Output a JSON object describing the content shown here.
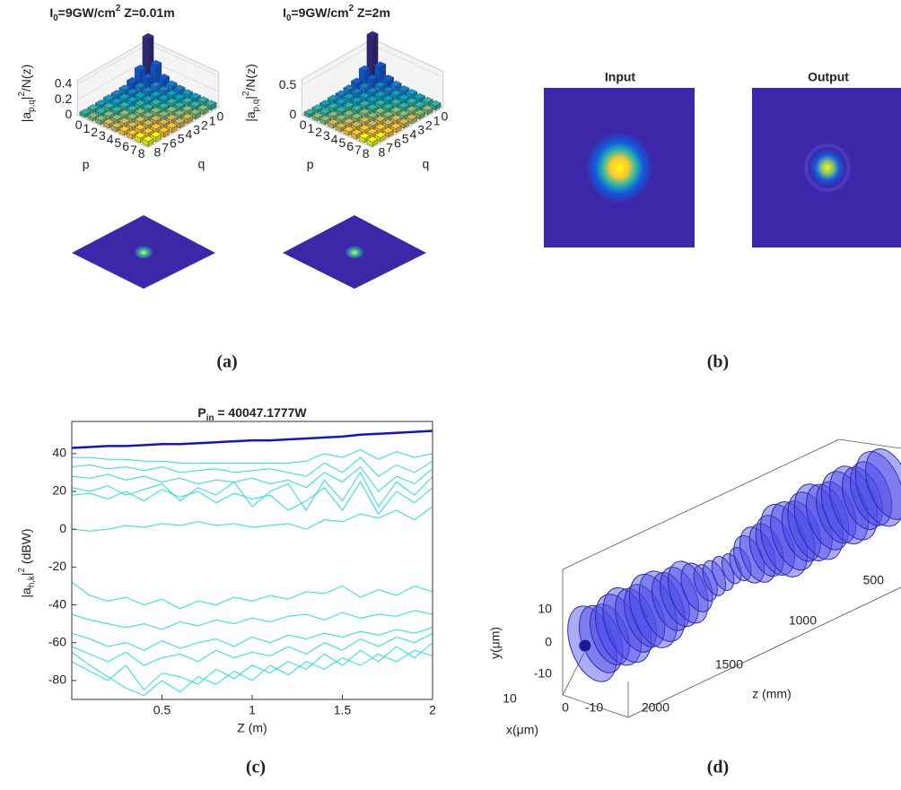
{
  "panel_labels": [
    "(a)",
    "(b)",
    "(c)",
    "(d)"
  ],
  "chart_data": [
    {
      "type": "bar3d",
      "title_prefix": "I",
      "title_sub": "0",
      "title_mid": "=9GW/cm",
      "title_sup": "2",
      "title_suffix": " Z=0.01m",
      "zlabel_prefix": "|a",
      "zlabel_sub": "p,q",
      "zlabel_mid": "|",
      "zlabel_sup": "2",
      "zlabel_suffix": "/N(z)",
      "xlabel": "p",
      "ylabel": "q",
      "pticks": [
        0,
        1,
        2,
        3,
        4,
        5,
        6,
        7,
        8
      ],
      "qticks": [
        0,
        1,
        2,
        3,
        4,
        5,
        6,
        7,
        8
      ],
      "zlim": [
        0,
        0.45
      ],
      "zticks": [
        0,
        0.2,
        0.4
      ],
      "values": [
        [
          0.55,
          0.2,
          0.1,
          0.06,
          0.05,
          0.05,
          0.04,
          0.04,
          0.04
        ],
        [
          0.25,
          0.14,
          0.08,
          0.06,
          0.05,
          0.05,
          0.05,
          0.04,
          0.04
        ],
        [
          0.12,
          0.08,
          0.07,
          0.06,
          0.06,
          0.05,
          0.05,
          0.05,
          0.05
        ],
        [
          0.08,
          0.07,
          0.06,
          0.06,
          0.06,
          0.05,
          0.05,
          0.05,
          0.05
        ],
        [
          0.07,
          0.06,
          0.06,
          0.06,
          0.06,
          0.06,
          0.05,
          0.05,
          0.05
        ],
        [
          0.06,
          0.06,
          0.06,
          0.06,
          0.06,
          0.06,
          0.06,
          0.05,
          0.05
        ],
        [
          0.06,
          0.06,
          0.06,
          0.06,
          0.06,
          0.06,
          0.06,
          0.06,
          0.05
        ],
        [
          0.06,
          0.06,
          0.06,
          0.06,
          0.06,
          0.06,
          0.06,
          0.06,
          0.06
        ],
        [
          0.06,
          0.06,
          0.06,
          0.06,
          0.06,
          0.06,
          0.06,
          0.06,
          0.06
        ]
      ]
    },
    {
      "type": "bar3d",
      "title_prefix": "I",
      "title_sub": "0",
      "title_mid": "=9GW/cm",
      "title_sup": "2",
      "title_suffix": " Z=2m",
      "zlabel_prefix": "|a",
      "zlabel_sub": "p,q",
      "zlabel_mid": "|",
      "zlabel_sup": "2",
      "zlabel_suffix": "/N(z)",
      "xlabel": "p",
      "ylabel": "q",
      "pticks": [
        0,
        1,
        2,
        3,
        4,
        5,
        6,
        7,
        8
      ],
      "qticks": [
        0,
        1,
        2,
        3,
        4,
        5,
        6,
        7,
        8
      ],
      "zlim": [
        0,
        0.6
      ],
      "zticks": [
        0,
        0.5
      ],
      "values": [
        [
          0.75,
          0.25,
          0.12,
          0.08,
          0.06,
          0.06,
          0.05,
          0.05,
          0.05
        ],
        [
          0.3,
          0.16,
          0.1,
          0.08,
          0.07,
          0.06,
          0.06,
          0.05,
          0.05
        ],
        [
          0.14,
          0.1,
          0.08,
          0.07,
          0.07,
          0.06,
          0.06,
          0.06,
          0.06
        ],
        [
          0.1,
          0.08,
          0.08,
          0.07,
          0.07,
          0.07,
          0.06,
          0.06,
          0.06
        ],
        [
          0.08,
          0.08,
          0.07,
          0.07,
          0.07,
          0.07,
          0.07,
          0.06,
          0.06
        ],
        [
          0.08,
          0.07,
          0.07,
          0.07,
          0.07,
          0.07,
          0.07,
          0.07,
          0.06
        ],
        [
          0.07,
          0.07,
          0.07,
          0.07,
          0.07,
          0.07,
          0.07,
          0.07,
          0.07
        ],
        [
          0.07,
          0.07,
          0.07,
          0.07,
          0.07,
          0.07,
          0.07,
          0.07,
          0.07
        ],
        [
          0.07,
          0.07,
          0.07,
          0.07,
          0.07,
          0.07,
          0.07,
          0.07,
          0.07
        ]
      ]
    },
    {
      "type": "heatmap",
      "title": "Input"
    },
    {
      "type": "heatmap",
      "title": "Output"
    },
    {
      "type": "line",
      "title_prefix": "P",
      "title_sub": "in",
      "title_suffix": " = 40047.1777W",
      "ylabel_prefix": "|a",
      "ylabel_sub": "h,k",
      "ylabel_mid": "|",
      "ylabel_sup": "2",
      "ylabel_suffix": " (dBW)",
      "xlabel": "Z (m)",
      "xlim": [
        0,
        2
      ],
      "ylim": [
        -90,
        57
      ],
      "xticks": [
        0.5,
        1,
        1.5,
        2
      ],
      "yticks": [
        -80,
        -60,
        -40,
        -20,
        0,
        20,
        40
      ],
      "x": [
        0,
        0.1,
        0.2,
        0.3,
        0.4,
        0.5,
        0.6,
        0.7,
        0.8,
        0.9,
        1,
        1.1,
        1.2,
        1.3,
        1.4,
        1.5,
        1.6,
        1.7,
        1.8,
        1.9,
        2
      ],
      "series": [
        {
          "color": "#1414c0",
          "values": [
            43,
            43.5,
            44,
            44,
            44.5,
            45,
            45,
            45.5,
            46,
            46.5,
            47,
            47,
            47.5,
            48,
            48.5,
            49,
            50,
            50.5,
            51,
            51.5,
            52
          ]
        },
        {
          "color": "#22dede",
          "values": [
            38,
            38,
            37,
            37,
            36,
            36,
            35,
            35,
            35,
            35,
            35,
            35,
            35,
            36,
            40,
            38,
            42,
            37,
            41,
            38,
            40
          ]
        },
        {
          "color": "#22dede",
          "values": [
            33,
            34,
            32,
            33,
            31,
            33,
            30,
            31,
            32,
            30,
            31,
            32,
            30,
            28,
            35,
            30,
            38,
            28,
            34,
            30,
            36
          ]
        },
        {
          "color": "#22dede",
          "values": [
            28,
            27,
            29,
            26,
            28,
            25,
            27,
            24,
            26,
            25,
            27,
            24,
            26,
            22,
            30,
            25,
            33,
            20,
            28,
            24,
            32
          ]
        },
        {
          "color": "#22dede",
          "values": [
            22,
            20,
            23,
            18,
            21,
            24,
            15,
            22,
            18,
            25,
            12,
            20,
            24,
            10,
            26,
            15,
            30,
            12,
            25,
            18,
            28
          ]
        },
        {
          "color": "#22dede",
          "values": [
            18,
            19,
            16,
            20,
            15,
            21,
            17,
            20,
            14,
            19,
            16,
            18,
            10,
            15,
            22,
            10,
            25,
            8,
            20,
            14,
            22
          ]
        },
        {
          "color": "#22dede",
          "values": [
            0,
            -1,
            0,
            2,
            1,
            3,
            2,
            4,
            2,
            3,
            1,
            2,
            3,
            0,
            5,
            4,
            8,
            6,
            10,
            5,
            12
          ]
        },
        {
          "color": "#22dede",
          "values": [
            -28,
            -35,
            -38,
            -36,
            -40,
            -37,
            -42,
            -38,
            -40,
            -36,
            -38,
            -35,
            -37,
            -33,
            -34,
            -30,
            -36,
            -32,
            -35,
            -30,
            -33
          ]
        },
        {
          "color": "#22dede",
          "values": [
            -45,
            -48,
            -50,
            -52,
            -50,
            -53,
            -49,
            -51,
            -48,
            -50,
            -47,
            -49,
            -46,
            -45,
            -48,
            -44,
            -47,
            -45,
            -46,
            -43,
            -45
          ]
        },
        {
          "color": "#22dede",
          "values": [
            -55,
            -58,
            -62,
            -60,
            -64,
            -59,
            -63,
            -60,
            -58,
            -62,
            -57,
            -60,
            -56,
            -58,
            -55,
            -57,
            -54,
            -56,
            -53,
            -55,
            -52
          ]
        },
        {
          "color": "#22dede",
          "values": [
            -62,
            -66,
            -70,
            -65,
            -72,
            -68,
            -66,
            -70,
            -64,
            -68,
            -65,
            -67,
            -62,
            -66,
            -60,
            -64,
            -58,
            -62,
            -57,
            -60,
            -55
          ]
        },
        {
          "color": "#22dede",
          "values": [
            -70,
            -75,
            -80,
            -72,
            -85,
            -76,
            -78,
            -82,
            -74,
            -79,
            -72,
            -76,
            -70,
            -74,
            -66,
            -72,
            -64,
            -70,
            -62,
            -68,
            -60
          ]
        },
        {
          "color": "#22dede",
          "values": [
            -65,
            -72,
            -78,
            -84,
            -88,
            -80,
            -86,
            -78,
            -82,
            -75,
            -80,
            -72,
            -77,
            -70,
            -74,
            -68,
            -72,
            -66,
            -70,
            -64,
            -67
          ]
        }
      ]
    },
    {
      "type": "tube3d",
      "xlabel": "x(μm)",
      "ylabel": "y(μm)",
      "zlabel": "z (mm)",
      "xticks": [
        10,
        0,
        -10
      ],
      "yticks": [
        10,
        0,
        -10
      ],
      "zticks": [
        500,
        1000,
        1500,
        2000
      ]
    }
  ]
}
